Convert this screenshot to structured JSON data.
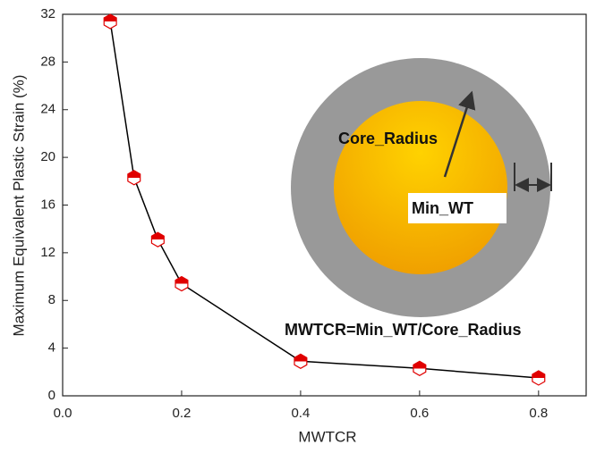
{
  "chart_data": {
    "type": "line",
    "x_label": "MWTCR",
    "y_label": "Maximum Equivalent Plastic Strain (%)",
    "x": [
      0.08,
      0.12,
      0.16,
      0.2,
      0.4,
      0.6,
      0.8
    ],
    "values": [
      31.4,
      18.3,
      13.1,
      9.4,
      2.9,
      2.3,
      1.5
    ],
    "color": "#e00000",
    "line_color": "#000000",
    "xlim": [
      0,
      0.88
    ],
    "xticks": [
      {
        "value": 0,
        "label": "0.0"
      },
      0.2,
      0.4,
      0.6,
      0.8
    ],
    "ylim": [
      0,
      32
    ],
    "yticks": [
      0,
      4,
      8,
      12,
      16,
      20,
      24,
      28,
      32
    ],
    "annotations": [
      "Core_Radius",
      "Min_WT",
      "MWTCR=Min_WT/Core_Radius"
    ]
  }
}
